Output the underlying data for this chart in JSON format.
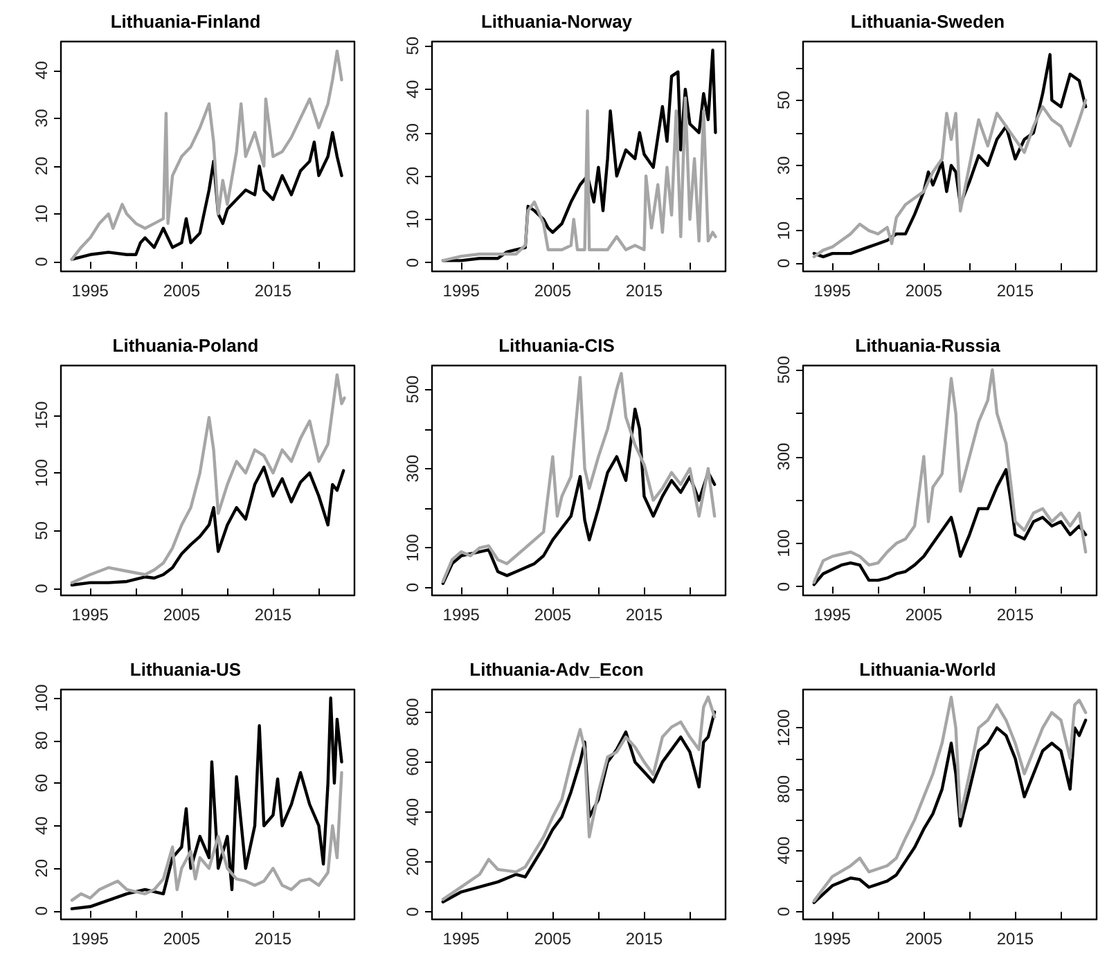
{
  "chart_data": [
    {
      "type": "line",
      "title": "Lithuania-Finland",
      "xlim": [
        1991.8,
        2023.9
      ],
      "ylim": [
        -2,
        46
      ],
      "xticks": [
        1995,
        {
          "value": 2000,
          "label": null
        },
        2005,
        {
          "value": 2010,
          "label": null
        },
        2015,
        {
          "value": 2020,
          "label": null
        }
      ],
      "yticks": [
        0,
        10,
        20,
        30,
        40
      ],
      "grid": false,
      "marker": "none",
      "line_style": "solid",
      "series": [
        {
          "color": "#000000",
          "x": [
            1993,
            1995,
            1997,
            1999,
            2000,
            2000.5,
            2001,
            2002,
            2003,
            2004,
            2005,
            2005.5,
            2006,
            2007,
            2008,
            2008.5,
            2009,
            2009.5,
            2010,
            2011,
            2012,
            2013,
            2013.5,
            2014,
            2015,
            2016,
            2017,
            2018,
            2019,
            2019.5,
            2020,
            2021,
            2021.5,
            2022,
            2022.5
          ],
          "values": [
            0.5,
            1.5,
            2,
            1.5,
            1.5,
            4,
            5,
            3,
            7,
            3,
            4,
            9,
            4,
            6,
            15,
            21,
            10,
            8,
            11,
            13,
            15,
            14,
            20,
            15,
            13,
            18,
            14,
            19,
            21,
            25,
            18,
            22,
            27,
            22,
            18
          ]
        },
        {
          "color": "#a6a6a6",
          "x": [
            1993,
            1994,
            1995,
            1996,
            1997,
            1997.5,
            1998.5,
            1999,
            2000,
            2001,
            2002,
            2003,
            2003.3,
            2003.5,
            2004,
            2005,
            2006,
            2007,
            2008,
            2008.5,
            2009,
            2009.5,
            2010,
            2011,
            2011.5,
            2012,
            2013,
            2014,
            2014.2,
            2015,
            2016,
            2017,
            2018,
            2019,
            2020,
            2021,
            2021.5,
            2022,
            2022.5
          ],
          "values": [
            0.5,
            3,
            5,
            8,
            10,
            7,
            12,
            10,
            8,
            7,
            8,
            9,
            31,
            8,
            18,
            22,
            24,
            28,
            33,
            25,
            10,
            17,
            12,
            23,
            33,
            22,
            27,
            20,
            34,
            22,
            23,
            26,
            30,
            34,
            28,
            33,
            38,
            44,
            38
          ]
        }
      ]
    },
    {
      "type": "line",
      "title": "Lithuania-Norway",
      "xlim": [
        1991.8,
        2023.9
      ],
      "ylim": [
        -2,
        51
      ],
      "xticks": [
        1995,
        {
          "value": 2000,
          "label": null
        },
        2005,
        {
          "value": 2010,
          "label": null
        },
        2015,
        {
          "value": 2020,
          "label": null
        }
      ],
      "yticks": [
        0,
        10,
        20,
        30,
        40,
        50
      ],
      "grid": false,
      "marker": "none",
      "line_style": "solid",
      "series": [
        {
          "color": "#000000",
          "x": [
            1993,
            1995,
            1997,
            1999,
            2000,
            2001,
            2002,
            2002.3,
            2003,
            2004,
            2004.5,
            2005,
            2006,
            2007,
            2008,
            2008.8,
            2009.5,
            2010,
            2010.5,
            2011,
            2011.3,
            2012,
            2013,
            2014,
            2014.5,
            2015,
            2016,
            2017,
            2017.5,
            2018,
            2018.7,
            2019,
            2019.5,
            2020,
            2021,
            2021.5,
            2022,
            2022.5,
            2022.8
          ],
          "values": [
            0.5,
            0.5,
            1,
            1,
            2.5,
            3,
            3.5,
            13,
            12,
            10,
            8,
            7,
            9,
            14,
            18,
            20,
            14,
            22,
            12,
            24,
            35,
            20,
            26,
            24,
            30,
            25,
            22,
            36,
            28,
            43,
            44,
            26,
            40,
            32,
            30,
            39,
            33,
            49,
            30
          ]
        },
        {
          "color": "#a6a6a6",
          "x": [
            1993,
            1995,
            1997,
            1999,
            2001,
            2002,
            2002.3,
            2003,
            2004,
            2004.5,
            2006,
            2007,
            2007.3,
            2007.7,
            2008.5,
            2008.8,
            2009,
            2011,
            2012,
            2013,
            2014,
            2015,
            2015.2,
            2015.8,
            2016.5,
            2017,
            2017.5,
            2018,
            2018.5,
            2019,
            2019.5,
            2020,
            2020.5,
            2021,
            2021.5,
            2022,
            2022.5,
            2022.8
          ],
          "values": [
            0.5,
            1.5,
            2,
            2,
            2,
            4,
            12,
            14,
            9,
            3,
            3,
            4,
            10,
            3,
            3,
            35,
            3,
            3,
            6,
            3,
            4,
            3,
            20,
            8,
            18,
            7,
            22,
            11,
            35,
            6,
            38,
            10,
            24,
            5,
            35,
            5,
            7,
            6
          ]
        }
      ]
    },
    {
      "type": "line",
      "title": "Lithuania-Sweden",
      "xlim": [
        1991.8,
        2023.9
      ],
      "ylim": [
        -2.5,
        68
      ],
      "xticks": [
        1995,
        {
          "value": 2000,
          "label": null
        },
        2005,
        {
          "value": 2010,
          "label": null
        },
        2015,
        {
          "value": 2020,
          "label": null
        }
      ],
      "yticks": [
        0,
        10,
        {
          "value": 20,
          "label": null
        },
        30,
        {
          "value": 40,
          "label": null
        },
        50,
        {
          "value": 60,
          "label": null
        }
      ],
      "grid": false,
      "marker": "none",
      "line_style": "solid",
      "series": [
        {
          "color": "#000000",
          "x": [
            1993,
            1994,
            1995,
            1996,
            1997,
            1998,
            1999,
            2000,
            2001,
            2002,
            2003,
            2004,
            2005,
            2005.5,
            2006,
            2007,
            2007.5,
            2008,
            2008.5,
            2009,
            2010,
            2011,
            2012,
            2013,
            2014,
            2015,
            2016,
            2017,
            2018,
            2018.8,
            2019,
            2020,
            2021,
            2022,
            2022.7
          ],
          "values": [
            3,
            2,
            3,
            3,
            3,
            4,
            5,
            6,
            7,
            9,
            9,
            15,
            22,
            28,
            24,
            31,
            22,
            30,
            28,
            18,
            25,
            33,
            30,
            38,
            42,
            32,
            38,
            40,
            52,
            64,
            50,
            48,
            58,
            56,
            48
          ]
        },
        {
          "color": "#a6a6a6",
          "x": [
            1993,
            1994,
            1995,
            1996,
            1997,
            1998,
            1999,
            2000,
            2001,
            2001.5,
            2002,
            2003,
            2004,
            2005,
            2006,
            2007,
            2007.5,
            2008,
            2008.5,
            2009,
            2010,
            2011,
            2012,
            2013,
            2014,
            2015,
            2016,
            2017,
            2018,
            2019,
            2020,
            2021,
            2022,
            2022.7
          ],
          "values": [
            2,
            4,
            5,
            7,
            9,
            12,
            10,
            9,
            11,
            6,
            14,
            18,
            20,
            22,
            28,
            32,
            46,
            38,
            46,
            16,
            30,
            44,
            36,
            46,
            42,
            38,
            34,
            42,
            48,
            44,
            42,
            36,
            44,
            50
          ]
        }
      ]
    },
    {
      "type": "line",
      "title": "Lithuania-Poland",
      "xlim": [
        1991.8,
        2023.9
      ],
      "ylim": [
        -6,
        193
      ],
      "xticks": [
        1995,
        {
          "value": 2000,
          "label": null
        },
        2005,
        {
          "value": 2010,
          "label": null
        },
        2015,
        {
          "value": 2020,
          "label": null
        }
      ],
      "yticks": [
        0,
        50,
        100,
        150
      ],
      "grid": false,
      "marker": "none",
      "line_style": "solid",
      "series": [
        {
          "color": "#000000",
          "x": [
            1993,
            1995,
            1997,
            1999,
            2001,
            2002,
            2003,
            2004,
            2005,
            2006,
            2007,
            2008,
            2008.5,
            2009,
            2010,
            2011,
            2012,
            2013,
            2014,
            2015,
            2016,
            2017,
            2018,
            2019,
            2020,
            2021,
            2021.5,
            2022,
            2022.7
          ],
          "values": [
            3,
            5,
            5,
            6,
            10,
            9,
            12,
            18,
            30,
            38,
            45,
            55,
            70,
            32,
            55,
            70,
            60,
            90,
            105,
            80,
            95,
            75,
            92,
            100,
            80,
            55,
            90,
            85,
            102
          ]
        },
        {
          "color": "#a6a6a6",
          "x": [
            1993,
            1995,
            1997,
            1999,
            2001,
            2002,
            2003,
            2004,
            2005,
            2006,
            2007,
            2008,
            2008.5,
            2009,
            2010,
            2011,
            2012,
            2013,
            2014,
            2015,
            2016,
            2017,
            2018,
            2019,
            2020,
            2021,
            2022,
            2022.5,
            2022.8
          ],
          "values": [
            5,
            12,
            18,
            15,
            12,
            16,
            22,
            35,
            55,
            70,
            100,
            148,
            120,
            65,
            90,
            110,
            100,
            120,
            115,
            100,
            120,
            110,
            130,
            145,
            110,
            125,
            185,
            160,
            165
          ]
        }
      ]
    },
    {
      "type": "line",
      "title": "Lithuania-CIS",
      "xlim": [
        1991.8,
        2023.9
      ],
      "ylim": [
        -20,
        560
      ],
      "xticks": [
        1995,
        {
          "value": 2000,
          "label": null
        },
        2005,
        {
          "value": 2010,
          "label": null
        },
        2015,
        {
          "value": 2020,
          "label": null
        }
      ],
      "yticks": [
        0,
        100,
        {
          "value": 200,
          "label": null
        },
        300,
        {
          "value": 400,
          "label": null
        },
        500
      ],
      "grid": false,
      "marker": "none",
      "line_style": "solid",
      "series": [
        {
          "color": "#000000",
          "x": [
            1993,
            1994,
            1995,
            1996,
            1997,
            1998,
            1999,
            2000,
            2001,
            2002,
            2003,
            2004,
            2005,
            2006,
            2007,
            2008,
            2008.5,
            2009,
            2010,
            2011,
            2012,
            2013,
            2014,
            2014.5,
            2015,
            2016,
            2017,
            2018,
            2019,
            2020,
            2021,
            2022,
            2022.7
          ],
          "values": [
            10,
            60,
            80,
            85,
            90,
            95,
            40,
            30,
            40,
            50,
            60,
            80,
            120,
            150,
            180,
            280,
            170,
            120,
            200,
            290,
            330,
            270,
            450,
            400,
            230,
            180,
            230,
            270,
            240,
            280,
            220,
            290,
            260
          ]
        },
        {
          "color": "#a6a6a6",
          "x": [
            1993,
            1994,
            1995,
            1996,
            1997,
            1998,
            1999,
            2000,
            2001,
            2002,
            2003,
            2004,
            2005,
            2005.5,
            2006,
            2007,
            2008,
            2008.5,
            2009,
            2010,
            2011,
            2012,
            2012.5,
            2013,
            2014,
            2015,
            2016,
            2017,
            2018,
            2019,
            2020,
            2021,
            2022,
            2022.7
          ],
          "values": [
            15,
            70,
            90,
            80,
            100,
            105,
            70,
            60,
            80,
            100,
            120,
            140,
            330,
            180,
            230,
            280,
            530,
            300,
            250,
            330,
            400,
            500,
            540,
            430,
            360,
            310,
            220,
            250,
            290,
            260,
            300,
            180,
            300,
            180
          ]
        }
      ]
    },
    {
      "type": "line",
      "title": "Lithuania-Russia",
      "xlim": [
        1991.8,
        2023.9
      ],
      "ylim": [
        -20,
        510
      ],
      "xticks": [
        1995,
        {
          "value": 2000,
          "label": null
        },
        2005,
        {
          "value": 2010,
          "label": null
        },
        2015,
        {
          "value": 2020,
          "label": null
        }
      ],
      "yticks": [
        0,
        100,
        {
          "value": 200,
          "label": null
        },
        300,
        {
          "value": 400,
          "label": null
        },
        500
      ],
      "grid": false,
      "marker": "none",
      "line_style": "solid",
      "series": [
        {
          "color": "#000000",
          "x": [
            1993,
            1994,
            1995,
            1996,
            1997,
            1998,
            1999,
            2000,
            2001,
            2002,
            2003,
            2004,
            2005,
            2006,
            2007,
            2008,
            2008.5,
            2009,
            2010,
            2011,
            2012,
            2013,
            2014,
            2014.5,
            2015,
            2016,
            2017,
            2018,
            2019,
            2020,
            2021,
            2022,
            2022.7
          ],
          "values": [
            5,
            30,
            40,
            50,
            55,
            50,
            15,
            15,
            20,
            30,
            35,
            50,
            70,
            100,
            130,
            160,
            120,
            70,
            120,
            180,
            180,
            230,
            270,
            200,
            120,
            110,
            150,
            160,
            140,
            150,
            120,
            140,
            120
          ]
        },
        {
          "color": "#a6a6a6",
          "x": [
            1993,
            1994,
            1995,
            1996,
            1997,
            1998,
            1999,
            2000,
            2001,
            2002,
            2003,
            2004,
            2005,
            2005.5,
            2006,
            2007,
            2008,
            2008.5,
            2009,
            2010,
            2011,
            2012,
            2012.5,
            2013,
            2014,
            2015,
            2016,
            2017,
            2018,
            2019,
            2020,
            2021,
            2022,
            2022.7
          ],
          "values": [
            10,
            60,
            70,
            75,
            80,
            70,
            50,
            55,
            80,
            100,
            110,
            140,
            300,
            150,
            230,
            260,
            480,
            400,
            220,
            300,
            380,
            430,
            500,
            400,
            330,
            150,
            130,
            170,
            180,
            150,
            170,
            140,
            170,
            80
          ]
        }
      ]
    },
    {
      "type": "line",
      "title": "Lithuania-US",
      "xlim": [
        1991.8,
        2023.9
      ],
      "ylim": [
        -4,
        104
      ],
      "xticks": [
        1995,
        {
          "value": 2000,
          "label": null
        },
        2005,
        {
          "value": 2010,
          "label": null
        },
        2015,
        {
          "value": 2020,
          "label": null
        }
      ],
      "yticks": [
        0,
        20,
        40,
        60,
        80,
        100
      ],
      "grid": false,
      "marker": "none",
      "line_style": "solid",
      "series": [
        {
          "color": "#000000",
          "x": [
            1993,
            1995,
            1997,
            1999,
            2001,
            2003,
            2004,
            2005,
            2005.5,
            2006,
            2007,
            2008,
            2008.3,
            2009,
            2010,
            2010.5,
            2011,
            2012,
            2013,
            2013.5,
            2014,
            2015,
            2015.5,
            2016,
            2017,
            2018,
            2019,
            2020,
            2020.5,
            2021,
            2021.3,
            2021.7,
            2022,
            2022.5
          ],
          "values": [
            1,
            2,
            5,
            8,
            10,
            8,
            25,
            30,
            48,
            20,
            35,
            25,
            70,
            20,
            35,
            10,
            63,
            20,
            40,
            87,
            40,
            45,
            62,
            40,
            50,
            65,
            50,
            40,
            22,
            60,
            100,
            60,
            90,
            70
          ]
        },
        {
          "color": "#a6a6a6",
          "x": [
            1993,
            1994,
            1995,
            1996,
            1997,
            1998,
            1999,
            2000,
            2001,
            2002,
            2003,
            2004,
            2004.5,
            2005,
            2006,
            2006.5,
            2007,
            2008,
            2009,
            2010,
            2011,
            2012,
            2013,
            2014,
            2015,
            2016,
            2017,
            2018,
            2019,
            2020,
            2021,
            2021.5,
            2022,
            2022.5
          ],
          "values": [
            5,
            8,
            6,
            10,
            12,
            14,
            10,
            9,
            8,
            10,
            15,
            30,
            10,
            20,
            28,
            15,
            25,
            20,
            35,
            20,
            15,
            14,
            12,
            14,
            20,
            12,
            10,
            14,
            15,
            12,
            18,
            40,
            25,
            65
          ]
        }
      ]
    },
    {
      "type": "line",
      "title": "Lithuania-Adv_Econ",
      "xlim": [
        1991.8,
        2023.9
      ],
      "ylim": [
        -30,
        890
      ],
      "xticks": [
        1995,
        {
          "value": 2000,
          "label": null
        },
        2005,
        {
          "value": 2010,
          "label": null
        },
        2015,
        {
          "value": 2020,
          "label": null
        }
      ],
      "yticks": [
        0,
        200,
        400,
        600,
        800
      ],
      "grid": false,
      "marker": "none",
      "line_style": "solid",
      "series": [
        {
          "color": "#000000",
          "x": [
            1993,
            1995,
            1997,
            1999,
            2001,
            2002,
            2003,
            2004,
            2005,
            2006,
            2007,
            2008,
            2008.5,
            2009,
            2010,
            2011,
            2012,
            2013,
            2014,
            2015,
            2016,
            2017,
            2018,
            2019,
            2020,
            2021,
            2021.5,
            2022,
            2022.7
          ],
          "values": [
            40,
            80,
            100,
            120,
            150,
            140,
            200,
            260,
            330,
            380,
            480,
            600,
            680,
            380,
            450,
            600,
            650,
            720,
            600,
            560,
            520,
            600,
            650,
            700,
            640,
            500,
            680,
            700,
            800
          ]
        },
        {
          "color": "#a6a6a6",
          "x": [
            1993,
            1995,
            1997,
            1998,
            1999,
            2001,
            2002,
            2003,
            2004,
            2005,
            2006,
            2007,
            2008,
            2008.5,
            2009,
            2010,
            2011,
            2012,
            2013,
            2014,
            2015,
            2016,
            2017,
            2018,
            2019,
            2020,
            2021,
            2021.5,
            2022,
            2022.7
          ],
          "values": [
            50,
            100,
            150,
            210,
            170,
            160,
            180,
            240,
            300,
            380,
            450,
            600,
            730,
            650,
            300,
            480,
            620,
            640,
            700,
            660,
            600,
            550,
            700,
            740,
            760,
            700,
            650,
            820,
            860,
            780
          ]
        }
      ]
    },
    {
      "type": "line",
      "title": "Lithuania-World",
      "xlim": [
        1991.8,
        2023.9
      ],
      "ylim": [
        -50,
        1450
      ],
      "xticks": [
        1995,
        {
          "value": 2000,
          "label": null
        },
        2005,
        {
          "value": 2010,
          "label": null
        },
        2015,
        {
          "value": 2020,
          "label": null
        }
      ],
      "yticks": [
        0,
        {
          "value": 200,
          "label": null
        },
        400,
        {
          "value": 600,
          "label": null
        },
        800,
        {
          "value": 1000,
          "label": null
        },
        1200
      ],
      "grid": false,
      "marker": "none",
      "line_style": "solid",
      "series": [
        {
          "color": "#000000",
          "x": [
            1993,
            1995,
            1997,
            1998,
            1999,
            2001,
            2002,
            2003,
            2004,
            2005,
            2006,
            2007,
            2008,
            2008.5,
            2009,
            2010,
            2011,
            2012,
            2013,
            2014,
            2015,
            2016,
            2017,
            2018,
            2019,
            2020,
            2021,
            2021.5,
            2022,
            2022.7
          ],
          "values": [
            60,
            170,
            220,
            210,
            160,
            200,
            240,
            330,
            420,
            540,
            640,
            800,
            1100,
            900,
            560,
            800,
            1050,
            1100,
            1200,
            1150,
            1000,
            750,
            900,
            1050,
            1100,
            1050,
            800,
            1200,
            1150,
            1250
          ]
        },
        {
          "color": "#a6a6a6",
          "x": [
            1993,
            1995,
            1997,
            1998,
            1999,
            2001,
            2002,
            2003,
            2004,
            2005,
            2006,
            2007,
            2008,
            2008.5,
            2009,
            2010,
            2011,
            2012,
            2013,
            2014,
            2015,
            2016,
            2017,
            2018,
            2019,
            2020,
            2021,
            2021.5,
            2022,
            2022.7
          ],
          "values": [
            70,
            230,
            300,
            350,
            260,
            300,
            350,
            480,
            600,
            750,
            900,
            1100,
            1400,
            1200,
            620,
            900,
            1200,
            1250,
            1350,
            1250,
            1100,
            900,
            1050,
            1200,
            1300,
            1250,
            1000,
            1350,
            1380,
            1300
          ]
        }
      ]
    }
  ]
}
